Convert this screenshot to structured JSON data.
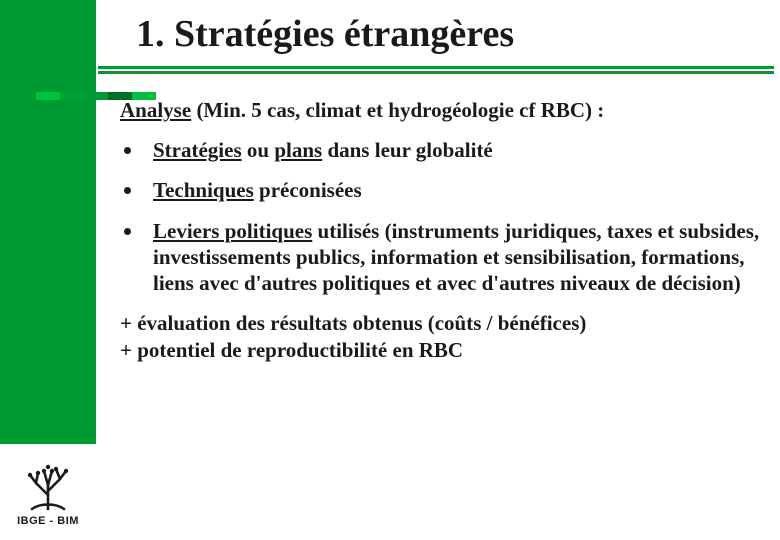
{
  "colors": {
    "green": "#009a33",
    "text": "#1a1a1a",
    "background": "#ffffff"
  },
  "sidebar": {
    "logo_label": "IBGE - BIM"
  },
  "title": "1. Stratégies étrangères",
  "intro": {
    "lead_underlined": "Analyse",
    "rest": " (Min. 5 cas, climat et hydrogéologie cf RBC) :"
  },
  "bullets": [
    {
      "parts": [
        {
          "t": "Stratégies",
          "u": true
        },
        {
          "t": " ou "
        },
        {
          "t": "plans",
          "u": true
        },
        {
          "t": " dans leur globalité"
        }
      ]
    },
    {
      "parts": [
        {
          "t": "Techniques",
          "u": true
        },
        {
          "t": " préconisées"
        }
      ]
    },
    {
      "parts": [
        {
          "t": "Leviers politiques",
          "u": true
        },
        {
          "t": " utilisés (instruments juridiques, taxes et subsides, investissements publics, information et sensibilisation, formations, liens avec d'autres politiques et avec d'autres niveaux de décision)"
        }
      ]
    }
  ],
  "footer_lines": [
    "+ évaluation des résultats obtenus (coûts / bénéfices)",
    "+ potentiel de reproductibilité en RBC"
  ]
}
